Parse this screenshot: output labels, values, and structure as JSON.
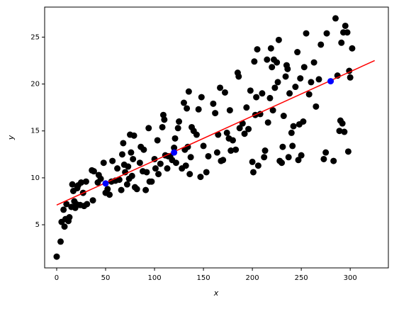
{
  "chart_data": {
    "type": "scatter",
    "x_label": "x",
    "y_label": "y",
    "x": [
      0,
      4,
      5,
      7,
      8,
      9,
      10,
      12,
      13,
      15,
      16,
      17,
      18,
      19,
      20,
      21,
      22,
      24,
      25,
      27,
      28,
      30,
      31,
      36,
      37,
      38,
      42,
      43,
      45,
      48,
      50,
      52,
      54,
      56,
      57,
      60,
      62,
      64,
      66,
      67,
      68,
      69,
      70,
      72,
      73,
      74,
      75,
      76,
      77,
      78,
      79,
      80,
      82,
      85,
      86,
      88,
      89,
      91,
      92,
      94,
      95,
      97,
      100,
      101,
      103,
      104,
      106,
      108,
      109,
      110,
      111,
      113,
      114,
      116,
      118,
      120,
      121,
      122,
      124,
      125,
      128,
      130,
      131,
      132,
      133,
      134,
      135,
      136,
      137,
      138,
      140,
      143,
      145,
      147,
      148,
      150,
      153,
      155,
      160,
      162,
      164,
      165,
      167,
      168,
      170,
      172,
      174,
      176,
      177,
      178,
      180,
      183,
      185,
      186,
      187,
      190,
      192,
      194,
      196,
      198,
      200,
      201,
      202,
      203,
      204,
      205,
      206,
      208,
      210,
      212,
      213,
      215,
      216,
      218,
      219,
      220,
      221,
      222,
      223,
      225,
      226,
      227,
      228,
      230,
      231,
      232,
      234,
      235,
      236,
      237,
      238,
      240,
      241,
      242,
      244,
      246,
      247,
      248,
      249,
      250,
      252,
      253,
      255,
      258,
      260,
      263,
      265,
      268,
      270,
      273,
      275,
      276,
      283,
      285,
      287,
      289,
      290,
      291,
      292,
      293,
      294,
      295,
      297,
      298,
      299,
      300,
      302
    ],
    "values": [
      1.6,
      3.2,
      5.3,
      6.6,
      4.8,
      5.6,
      7.2,
      5.4,
      5.8,
      6.9,
      9.3,
      8.6,
      7.5,
      6.8,
      7.2,
      8.9,
      9.2,
      7.1,
      9.5,
      8.4,
      7.0,
      9.6,
      7.2,
      10.8,
      7.6,
      10.7,
      9.5,
      10.3,
      9.9,
      11.6,
      8.4,
      8.8,
      8.2,
      9.6,
      11.8,
      9.7,
      11.0,
      9.8,
      8.7,
      12.5,
      13.7,
      11.4,
      10.6,
      9.3,
      11.2,
      9.9,
      14.6,
      12.7,
      10.2,
      12.0,
      14.5,
      9.0,
      8.8,
      11.6,
      13.3,
      10.7,
      13.0,
      8.7,
      10.6,
      15.3,
      9.6,
      9.6,
      12.0,
      11.0,
      14.0,
      10.4,
      11.5,
      15.4,
      16.7,
      16.2,
      12.4,
      11.0,
      12.3,
      12.3,
      11.9,
      13.2,
      14.2,
      11.6,
      15.3,
      16.0,
      11.0,
      18.0,
      13.0,
      11.3,
      17.4,
      13.3,
      19.2,
      10.4,
      12.2,
      15.4,
      15.0,
      14.6,
      17.3,
      10.1,
      18.6,
      13.4,
      10.6,
      12.3,
      17.9,
      16.9,
      12.7,
      14.6,
      19.6,
      11.8,
      11.9,
      19.1,
      14.8,
      14.2,
      17.2,
      12.9,
      14.0,
      13.0,
      21.2,
      20.8,
      15.3,
      15.8,
      14.7,
      17.5,
      15.2,
      19.3,
      11.7,
      10.6,
      22.4,
      16.7,
      18.6,
      23.7,
      11.3,
      16.8,
      19.0,
      12.2,
      12.9,
      22.6,
      15.9,
      18.5,
      23.8,
      21.8,
      17.2,
      22.6,
      19.6,
      22.3,
      20.2,
      24.7,
      11.8,
      11.6,
      13.3,
      16.6,
      20.8,
      22.0,
      21.6,
      12.2,
      19.0,
      14.8,
      13.4,
      15.5,
      19.7,
      23.4,
      11.9,
      15.7,
      20.6,
      12.4,
      16.0,
      21.8,
      25.4,
      18.9,
      20.2,
      22.3,
      17.6,
      20.5,
      24.2,
      12.0,
      12.7,
      25.4,
      11.8,
      27.0,
      20.9,
      15.0,
      16.1,
      24.4,
      15.8,
      25.5,
      14.9,
      26.2,
      25.5,
      12.8,
      21.4,
      20.7,
      23.8
    ],
    "color": "#000000",
    "line": {
      "x": [
        0,
        325
      ],
      "values": [
        7.1,
        22.5
      ],
      "color": "#ff0000"
    },
    "highlights": {
      "x": [
        50,
        120,
        280
      ],
      "values": [
        9.4,
        12.7,
        20.3
      ],
      "color": "#0000ff"
    },
    "xlim": [
      -12.3,
      339
    ],
    "ylim": [
      0.4,
      28.2
    ],
    "xticks": [
      0,
      50,
      100,
      150,
      200,
      250,
      300
    ],
    "yticks": [
      5,
      10,
      15,
      20,
      25
    ]
  }
}
